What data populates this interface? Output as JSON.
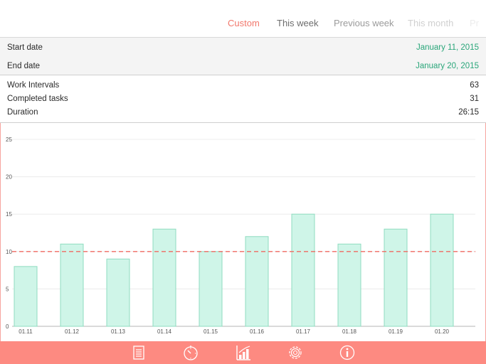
{
  "tabs": [
    {
      "label": "Custom",
      "color": "#f2786c"
    },
    {
      "label": "This week",
      "color": "#6d6d6d"
    },
    {
      "label": "Previous week",
      "color": "#9b9b9b"
    },
    {
      "label": "This month",
      "color": "#d0d0d0"
    },
    {
      "label": "Pr",
      "color": "#ececec"
    }
  ],
  "dates": {
    "start_label": "Start date",
    "start_value": "January 11, 2015",
    "end_label": "End date",
    "end_value": "January 20, 2015"
  },
  "stats": {
    "work_intervals_label": "Work Intervals",
    "work_intervals_value": "63",
    "completed_tasks_label": "Completed tasks",
    "completed_tasks_value": "31",
    "duration_label": "Duration",
    "duration_value": "26:15"
  },
  "chart_data": {
    "type": "bar",
    "categories": [
      "01.11",
      "01.12",
      "01.13",
      "01.14",
      "01.15",
      "01.16",
      "01.17",
      "01.18",
      "01.19",
      "01.20"
    ],
    "values": [
      8,
      11,
      9,
      13,
      10,
      12,
      15,
      11,
      13,
      15
    ],
    "ylim": [
      0,
      25
    ],
    "yticks": [
      0,
      5,
      10,
      15,
      20,
      25
    ],
    "reference_line": 10,
    "grid": true,
    "bar_color": "#cff5e8",
    "bar_stroke": "#8fdcc0",
    "reference_color": "#f06a62"
  },
  "bottom_bar": {
    "icons": [
      "list-icon",
      "timer-icon",
      "statistics-icon",
      "settings-icon",
      "info-icon"
    ],
    "color": "#fd8a81"
  }
}
